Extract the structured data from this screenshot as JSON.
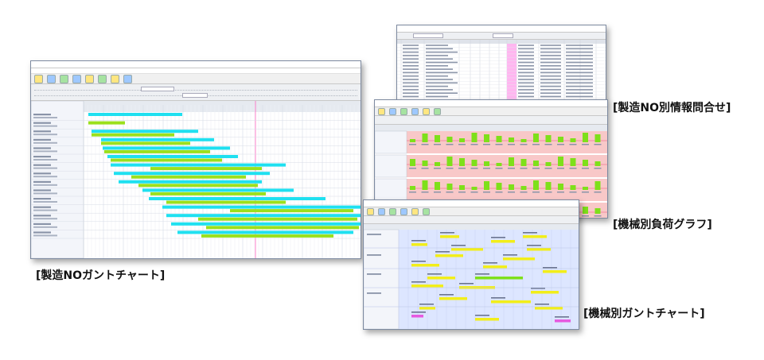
{
  "captions": {
    "gantt_by_order": "[製造NOガントチャート]",
    "order_inquiry": "[製造NO別情報問合せ]",
    "machine_load": "[機械別負荷グラフ]",
    "machine_gantt": "[機械別ガントチャート]"
  },
  "colors": {
    "bar_cyan": "#1fe0f0",
    "bar_green": "#9be01c",
    "load_green": "#7ee01a",
    "load_bg": "#f8c8c8",
    "machine_yellow": "#f2ee1a",
    "machine_magenta": "#e65ae0",
    "machine_lane": "#dde6ff",
    "highlight_pink": "#ffb6f0"
  }
}
